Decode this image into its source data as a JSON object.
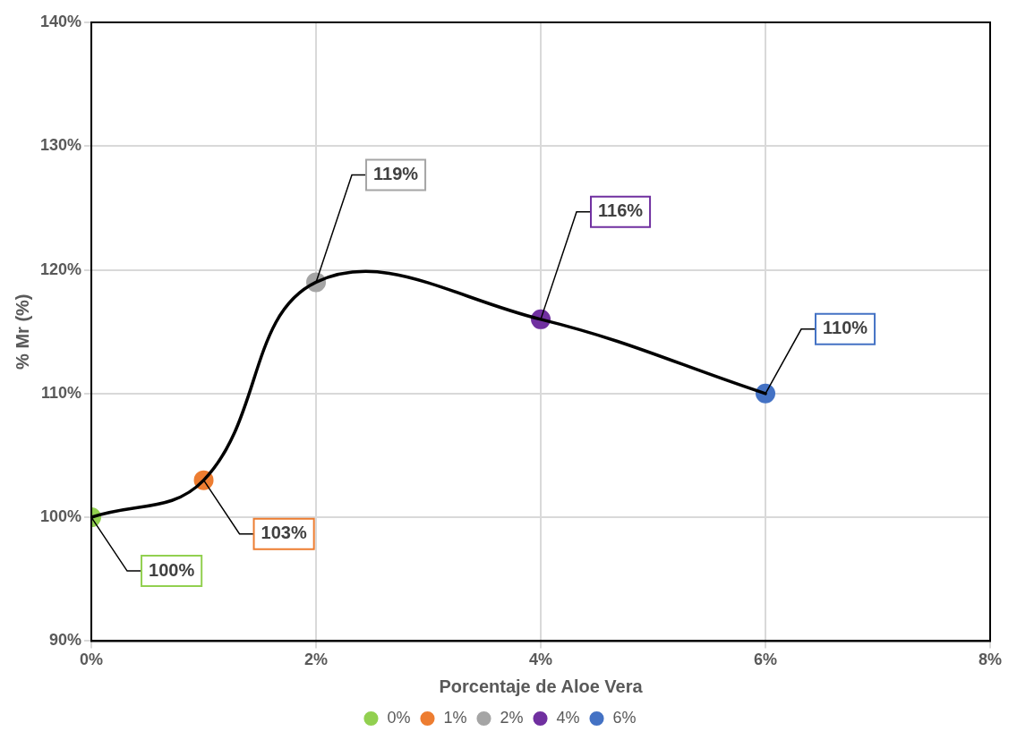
{
  "chart_data": {
    "type": "line",
    "xlabel": "Porcentaje de Aloe Vera",
    "ylabel": "% Mr (%)",
    "x": [
      0,
      1,
      2,
      4,
      6
    ],
    "xlim": [
      0,
      8
    ],
    "xticks": [
      {
        "value": 0,
        "label": "0%"
      },
      {
        "value": 2,
        "label": "2%"
      },
      {
        "value": 4,
        "label": "4%"
      },
      {
        "value": 6,
        "label": "6%"
      },
      {
        "value": 8,
        "label": "8%"
      }
    ],
    "ylim": [
      90,
      140
    ],
    "yticks": [
      {
        "value": 90,
        "label": "90%"
      },
      {
        "value": 100,
        "label": "100%"
      },
      {
        "value": 110,
        "label": "110%"
      },
      {
        "value": 120,
        "label": "120%"
      },
      {
        "value": 130,
        "label": "130%"
      },
      {
        "value": 140,
        "label": "140%"
      }
    ],
    "grid": true,
    "legend": "bottom",
    "line_style": "solid",
    "series": [
      {
        "type": "line",
        "color": "#000000",
        "marker": "none",
        "values": [
          100,
          103,
          119,
          116,
          110
        ]
      },
      {
        "type": "scatter",
        "name": "0%",
        "color": "#92d050",
        "marker": "circle",
        "x": [
          0
        ],
        "values": [
          100
        ],
        "value_labels": [
          "100%"
        ]
      },
      {
        "type": "scatter",
        "name": "1%",
        "color": "#ed7d31",
        "marker": "circle",
        "x": [
          1
        ],
        "values": [
          103
        ],
        "value_labels": [
          "103%"
        ]
      },
      {
        "type": "scatter",
        "name": "2%",
        "color": "#a5a5a5",
        "marker": "circle",
        "x": [
          2
        ],
        "values": [
          119
        ],
        "value_labels": [
          "119%"
        ]
      },
      {
        "type": "scatter",
        "name": "4%",
        "color": "#7030a0",
        "marker": "circle",
        "x": [
          4
        ],
        "values": [
          116
        ],
        "value_labels": [
          "116%"
        ]
      },
      {
        "type": "scatter",
        "name": "6%",
        "color": "#4472c4",
        "marker": "circle",
        "x": [
          6
        ],
        "values": [
          110
        ],
        "value_labels": [
          "110%"
        ]
      }
    ]
  }
}
